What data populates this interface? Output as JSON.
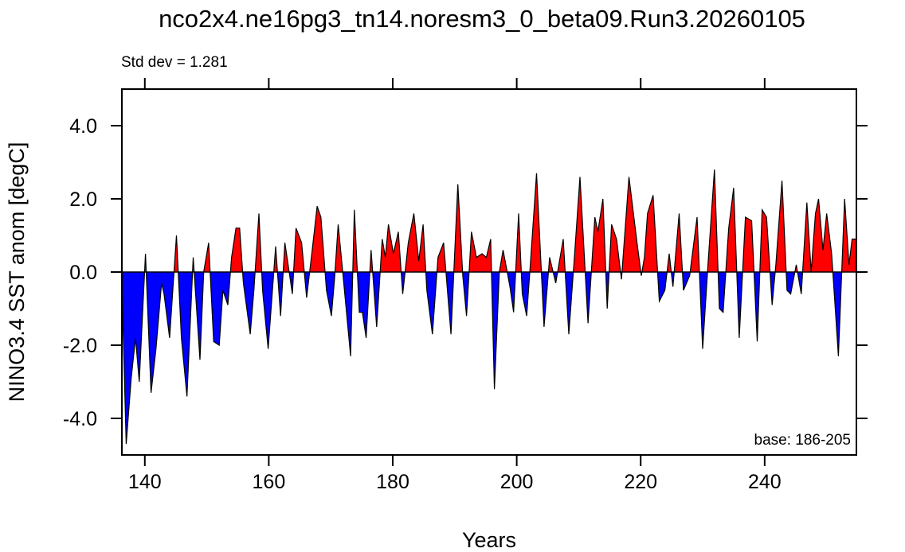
{
  "chart_data": {
    "type": "area",
    "title": "nco2x4.ne16pg3_tn14.noresm3_0_beta09.Run3.20260105",
    "annotations": [
      "Std dev = 1.281",
      "base: 186-205"
    ],
    "xlabel": "Years",
    "ylabel": "NINO3.4 SST anom [degC]",
    "x": [
      136.3,
      137.0,
      137.8,
      138.5,
      139.1,
      140.1,
      141.0,
      141.8,
      142.7,
      143.1,
      144.0,
      145.1,
      145.9,
      146.8,
      147.8,
      148.9,
      149.5,
      150.3,
      151.1,
      152.0,
      152.6,
      153.4,
      154.0,
      154.7,
      155.3,
      155.9,
      157.0,
      157.6,
      158.4,
      159.0,
      159.9,
      161.1,
      161.9,
      162.6,
      163.8,
      164.4,
      165.3,
      166.1,
      167.0,
      167.8,
      168.4,
      169.3,
      170.1,
      170.6,
      171.2,
      172.1,
      173.2,
      173.8,
      174.6,
      175.1,
      175.7,
      176.5,
      177.4,
      178.3,
      178.8,
      179.3,
      180.1,
      180.9,
      181.6,
      182.5,
      183.4,
      184.2,
      184.9,
      185.5,
      186.4,
      187.3,
      188.2,
      189.4,
      190.5,
      191.3,
      191.9,
      192.7,
      193.5,
      194.4,
      195.1,
      195.8,
      196.4,
      197.2,
      197.8,
      198.9,
      199.5,
      200.3,
      200.9,
      201.6,
      202.2,
      203.2,
      204.4,
      205.3,
      206.3,
      207.5,
      208.4,
      209.3,
      210.2,
      211.5,
      212.6,
      213.1,
      213.9,
      214.6,
      215.3,
      216.1,
      216.9,
      218.1,
      219.4,
      220.1,
      220.6,
      221.1,
      222.0,
      223.0,
      223.9,
      224.6,
      225.2,
      226.2,
      226.9,
      227.9,
      229.1,
      230.0,
      230.9,
      231.9,
      232.7,
      233.3,
      234.2,
      235.0,
      235.9,
      236.9,
      237.9,
      238.8,
      239.6,
      240.3,
      241.2,
      241.8,
      242.8,
      243.6,
      244.2,
      245.1,
      245.9,
      246.8,
      247.5,
      248.2,
      248.7,
      249.4,
      250.0,
      250.8,
      251.9,
      252.9,
      253.6,
      254.1,
      254.8
    ],
    "values": [
      -0.3,
      -4.7,
      -2.9,
      -1.8,
      -3.0,
      0.5,
      -3.3,
      -2.1,
      -0.3,
      -0.6,
      -1.8,
      1.0,
      -1.8,
      -3.4,
      0.4,
      -2.4,
      0.0,
      0.8,
      -1.9,
      -2.0,
      -0.5,
      -0.9,
      0.4,
      1.2,
      1.2,
      -0.3,
      -1.7,
      -0.5,
      1.6,
      -0.5,
      -2.1,
      0.7,
      -1.2,
      0.8,
      -0.6,
      1.2,
      0.8,
      -0.7,
      0.6,
      1.8,
      1.5,
      -0.5,
      -1.2,
      -0.2,
      1.3,
      -0.3,
      -2.3,
      1.7,
      -1.1,
      -1.1,
      -1.8,
      0.6,
      -1.5,
      0.9,
      0.4,
      1.3,
      0.5,
      1.1,
      -0.6,
      0.8,
      1.6,
      0.3,
      1.3,
      -0.5,
      -1.7,
      0.4,
      0.8,
      -1.7,
      2.4,
      -0.1,
      -1.2,
      1.1,
      0.4,
      0.5,
      0.4,
      0.9,
      -3.2,
      0.0,
      0.6,
      -0.4,
      -1.1,
      1.6,
      -0.6,
      -1.2,
      0.2,
      2.7,
      -1.5,
      0.4,
      -0.3,
      0.9,
      -1.7,
      0.4,
      2.6,
      -1.4,
      1.5,
      1.1,
      2.0,
      -1.0,
      1.3,
      0.9,
      -0.2,
      2.6,
      0.8,
      -0.1,
      0.4,
      1.6,
      2.1,
      -0.8,
      -0.5,
      0.5,
      -0.4,
      1.6,
      -0.5,
      -0.1,
      1.5,
      -2.1,
      0.3,
      2.8,
      -1.0,
      -1.1,
      1.2,
      2.3,
      -1.8,
      1.5,
      1.4,
      -1.9,
      1.7,
      1.5,
      -0.9,
      0.2,
      2.5,
      -0.5,
      -0.6,
      0.2,
      -0.6,
      1.9,
      0.0,
      1.6,
      2.0,
      0.6,
      1.6,
      0.5,
      -2.3,
      2.0,
      0.2,
      0.9,
      0.9
    ],
    "colors": {
      "positive": "#ff0000",
      "negative": "#0000ff",
      "line": "#000000"
    },
    "xlim": [
      136.3,
      254.8
    ],
    "xticks": [
      140,
      160,
      180,
      200,
      220,
      240
    ],
    "ylim": [
      -5,
      5
    ],
    "yticks": [
      {
        "value": -4,
        "label": "-4.0"
      },
      {
        "value": -2,
        "label": "-2.0"
      },
      {
        "value": 0,
        "label": "0.0"
      },
      {
        "value": 2,
        "label": "2.0"
      },
      {
        "value": 4,
        "label": "4.0"
      }
    ],
    "grid": false
  }
}
